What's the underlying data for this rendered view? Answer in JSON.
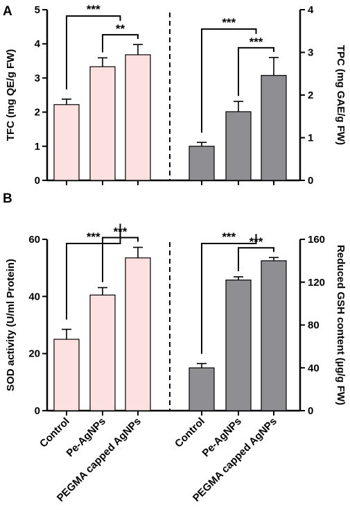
{
  "colors": {
    "pink": "#fde0e0",
    "gray": "#8e8e93",
    "axis": "#000000"
  },
  "chart_data": [
    {
      "type": "bar",
      "panel": "A",
      "categories": [
        "Control",
        "Pe-AgNPs",
        "PEGMA capped AgNPs"
      ],
      "series": [
        {
          "values": [
            2.22,
            3.33,
            3.68
          ],
          "errors": [
            0.16,
            0.26,
            0.3
          ],
          "color": "#fde0e0"
        }
      ],
      "ylabel": "TFC (mg QE/g FW)",
      "ylim": [
        0,
        5
      ],
      "yticks": [
        "0",
        "1",
        "2",
        "3",
        "4",
        "5"
      ],
      "significance": [
        {
          "from": 0,
          "to": 2,
          "label": "***"
        },
        {
          "from": 1,
          "to": 2,
          "label": "**"
        }
      ]
    },
    {
      "type": "bar",
      "panel": "A",
      "categories": [
        "Control",
        "Pe-AgNPs",
        "PEGMA capped AgNPs"
      ],
      "series": [
        {
          "values": [
            0.8,
            1.61,
            2.46
          ],
          "errors": [
            0.09,
            0.24,
            0.42
          ],
          "color": "#8e8e93"
        }
      ],
      "ylabel": "TPC (mg GAE/g FW)",
      "ylim": [
        0,
        4
      ],
      "yticks": [
        "0",
        "1",
        "2",
        "3",
        "4"
      ],
      "significance": [
        {
          "from": 0,
          "to": 2,
          "label": "***"
        },
        {
          "from": 1,
          "to": 2,
          "label": "***"
        }
      ]
    },
    {
      "type": "bar",
      "panel": "B",
      "categories": [
        "Control",
        "Pe-AgNPs",
        "PEGMA capped AgNPs"
      ],
      "series": [
        {
          "values": [
            25.0,
            40.5,
            53.5
          ],
          "errors": [
            3.5,
            2.6,
            3.7
          ],
          "color": "#fde0e0"
        }
      ],
      "ylabel": "SOD activity (U/ml Protein)",
      "ylim": [
        0,
        60
      ],
      "yticks": [
        "0",
        "20",
        "40",
        "60"
      ],
      "significance": [
        {
          "from": 0,
          "to": 2,
          "label": "***"
        },
        {
          "from": 1,
          "to": 2,
          "label": "***"
        }
      ]
    },
    {
      "type": "bar",
      "panel": "B",
      "categories": [
        "Control",
        "Pe-AgNPs",
        "PEGMA capped AgNPs"
      ],
      "series": [
        {
          "values": [
            40,
            122,
            140
          ],
          "errors": [
            4,
            3,
            3
          ],
          "color": "#8e8e93"
        }
      ],
      "ylabel": "Reduced GSH content (µg/g FW)",
      "ylim": [
        0,
        160
      ],
      "yticks": [
        "0",
        "40",
        "80",
        "120",
        "160"
      ],
      "significance": [
        {
          "from": 0,
          "to": 2,
          "label": "***"
        },
        {
          "from": 1,
          "to": 2,
          "label": "***"
        }
      ]
    }
  ]
}
